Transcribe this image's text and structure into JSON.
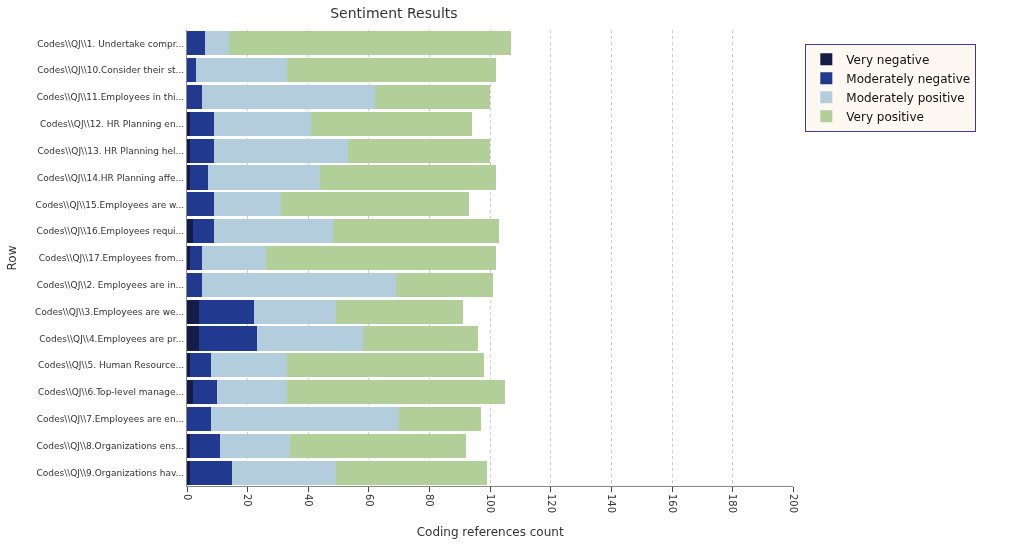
{
  "chart_data": {
    "type": "bar",
    "orientation": "horizontal",
    "stacked": true,
    "title": "Sentiment Results",
    "xlabel": "Coding references count",
    "ylabel": "Row",
    "categories": [
      "Codes\\\\QJ\\\\1. Undertake compr...",
      "Codes\\\\QJ\\\\10.Consider their st...",
      "Codes\\\\QJ\\\\11.Employees in thi...",
      "Codes\\\\QJ\\\\12. HR Planning en...",
      "Codes\\\\QJ\\\\13. HR Planning hel...",
      "Codes\\\\QJ\\\\14.HR Planning affe...",
      "Codes\\\\QJ\\\\15.Employees are w...",
      "Codes\\\\QJ\\\\16.Employees requi...",
      "Codes\\\\QJ\\\\17.Employees from...",
      "Codes\\\\QJ\\\\2. Employees are in...",
      "Codes\\\\QJ\\\\3.Employees are we...",
      "Codes\\\\QJ\\\\4.Employees are pr...",
      "Codes\\\\QJ\\\\5. Human Resource...",
      "Codes\\\\QJ\\\\6.Top-level manage...",
      "Codes\\\\QJ\\\\7.Employees are en...",
      "Codes\\\\QJ\\\\8.Organizations ens...",
      "Codes\\\\QJ\\\\9.Organizations hav..."
    ],
    "series": [
      {
        "name": "Very negative",
        "color": "#141c4a",
        "values": [
          0,
          0,
          0,
          1,
          1,
          1,
          0,
          2,
          1,
          0,
          4,
          4,
          1,
          2,
          0,
          1,
          1
        ]
      },
      {
        "name": "Moderately negative",
        "color": "#213a8f",
        "values": [
          6,
          3,
          5,
          8,
          8,
          6,
          9,
          7,
          4,
          5,
          18,
          19,
          7,
          8,
          8,
          10,
          14
        ]
      },
      {
        "name": "Moderately positive",
        "color": "#b3cddd",
        "values": [
          8,
          30,
          57,
          32,
          44,
          37,
          22,
          39,
          21,
          64,
          27,
          35,
          25,
          23,
          62,
          23,
          34
        ]
      },
      {
        "name": "Very positive",
        "color": "#b3cf99",
        "values": [
          93,
          69,
          38,
          53,
          47,
          58,
          62,
          55,
          76,
          32,
          42,
          38,
          65,
          72,
          27,
          58,
          50
        ]
      }
    ],
    "xlim": [
      0,
      200
    ],
    "xticks": [
      0,
      20,
      40,
      60,
      80,
      100,
      120,
      140,
      160,
      180,
      200
    ],
    "grid": "x",
    "legend": "right"
  }
}
